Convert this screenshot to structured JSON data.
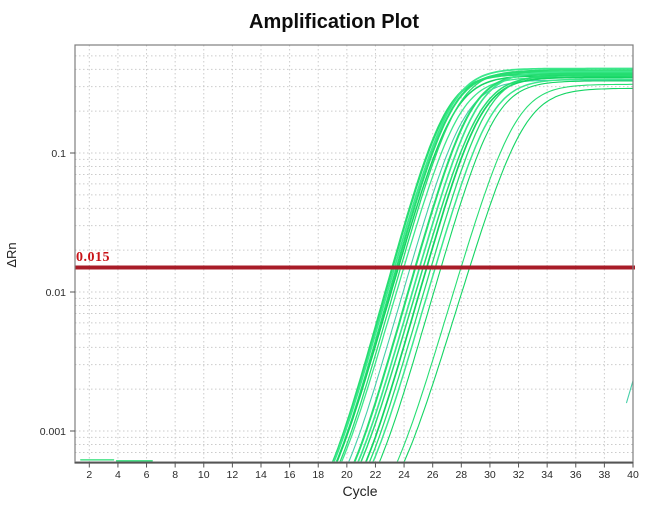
{
  "title": "Amplification Plot",
  "x_axis_label": "Cycle",
  "y_axis_label": "ΔRn",
  "threshold_label": "0.015",
  "colors": {
    "curve_palette": [
      "#26de72",
      "#3ce88c",
      "#14d563",
      "#45cfa8"
    ],
    "grid": "#cbcbcb",
    "border": "#7e7e7e",
    "axis_dark": "#555555",
    "tick_text": "#2a2a2a",
    "threshold_line": "#a81c28",
    "threshold_label_color": "#c91318",
    "title_color": "#0d0d0d"
  },
  "chart_data": {
    "type": "line",
    "title": "Amplification Plot",
    "xlabel": "Cycle",
    "ylabel": "ΔRn",
    "x_range": [
      1,
      40
    ],
    "x_ticks": [
      2,
      4,
      6,
      8,
      10,
      12,
      14,
      16,
      18,
      20,
      22,
      24,
      26,
      28,
      30,
      32,
      34,
      36,
      38,
      40
    ],
    "y_scale": "log10",
    "y_range": [
      0.0006,
      0.6
    ],
    "y_ticks": [
      0.1,
      0.01,
      0.001
    ],
    "grid": "dotted light-gray; vertical lines every 2 cycles; horizontal log minor lines at mantissas 1-9 per decade",
    "legend": "none",
    "threshold_line": {
      "value": 0.015,
      "label": "0.015"
    },
    "series_model": "deltaRn(cycle) = baseline + plateau / (1 + exp(-k*(cycle-c0))); c0 chosen so curve crosses threshold 0.015 at cycle = ct",
    "curve_baseline": 0.0002,
    "curves": [
      {
        "ct": 23.2,
        "plateau": 0.37,
        "k": 0.88,
        "width": 2.2,
        "color": 0
      },
      {
        "ct": 23.35,
        "plateau": 0.405,
        "k": 0.86,
        "width": 1.8,
        "color": 1
      },
      {
        "ct": 23.5,
        "plateau": 0.385,
        "k": 0.87,
        "width": 2.0,
        "color": 0
      },
      {
        "ct": 23.62,
        "plateau": 0.36,
        "k": 0.85,
        "width": 1.5,
        "color": 2
      },
      {
        "ct": 23.78,
        "plateau": 0.395,
        "k": 0.86,
        "width": 1.3,
        "color": 0
      },
      {
        "ct": 24.0,
        "plateau": 0.35,
        "k": 0.84,
        "width": 1.3,
        "color": 1
      },
      {
        "ct": 24.45,
        "plateau": 0.335,
        "k": 0.85,
        "width": 1.1,
        "color": 3
      },
      {
        "ct": 24.8,
        "plateau": 0.375,
        "k": 0.86,
        "width": 2.0,
        "color": 0
      },
      {
        "ct": 25.1,
        "plateau": 0.385,
        "k": 0.85,
        "width": 1.7,
        "color": 1
      },
      {
        "ct": 25.35,
        "plateau": 0.36,
        "k": 0.84,
        "width": 1.5,
        "color": 0
      },
      {
        "ct": 25.6,
        "plateau": 0.35,
        "k": 0.86,
        "width": 1.7,
        "color": 2
      },
      {
        "ct": 25.9,
        "plateau": 0.372,
        "k": 0.85,
        "width": 1.3,
        "color": 0
      },
      {
        "ct": 26.2,
        "plateau": 0.34,
        "k": 0.84,
        "width": 1.5,
        "color": 1
      },
      {
        "ct": 26.6,
        "plateau": 0.33,
        "k": 0.85,
        "width": 1.1,
        "color": 2
      },
      {
        "ct": 28.0,
        "plateau": 0.312,
        "k": 0.82,
        "width": 1.1,
        "color": 0
      },
      {
        "ct": 28.6,
        "plateau": 0.292,
        "k": 0.8,
        "width": 1.1,
        "color": 2
      }
    ],
    "baseline_segments": [
      {
        "c1": 1.4,
        "v1": 0.00062,
        "c2": 3.7,
        "v2": 0.00062,
        "width": 1.2,
        "color": 0
      },
      {
        "c1": 3.9,
        "v1": 0.00061,
        "c2": 6.4,
        "v2": 0.00061,
        "width": 1.2,
        "color": 2
      },
      {
        "c1": 39.55,
        "v1": 0.0016,
        "c2": 40,
        "v2": 0.0023,
        "width": 1.1,
        "color": 3
      }
    ]
  }
}
